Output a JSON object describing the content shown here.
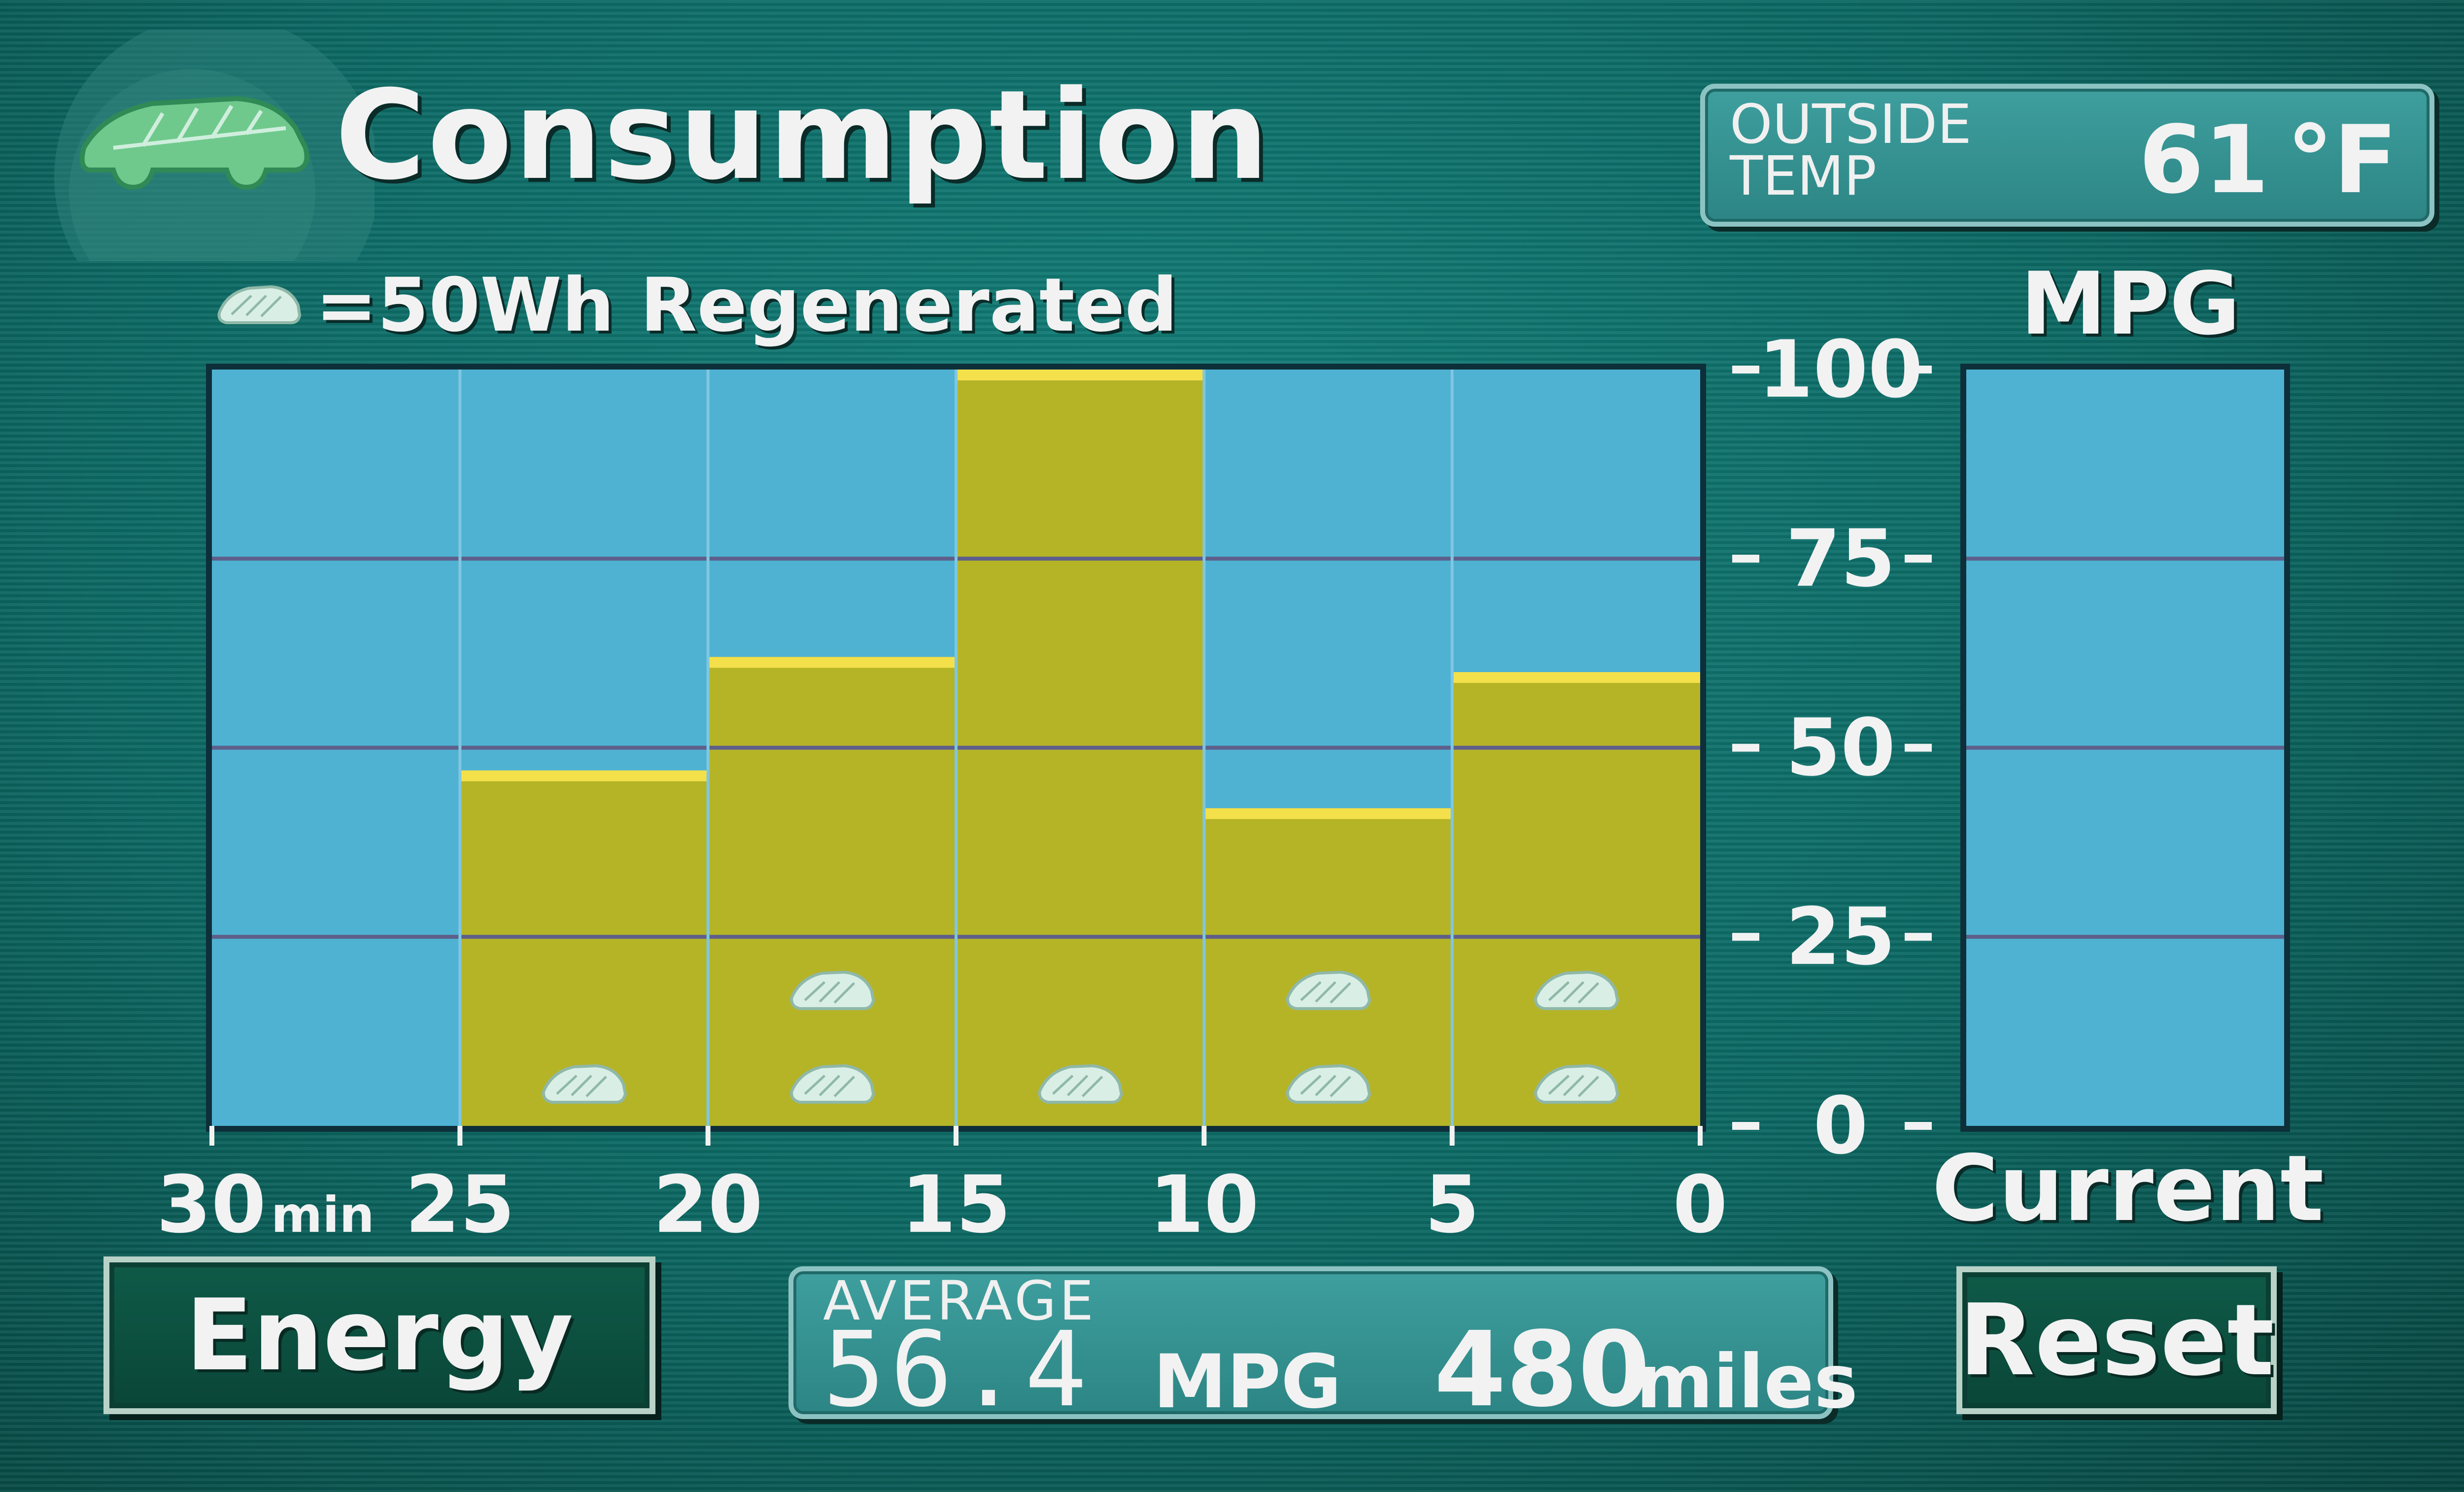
{
  "header": {
    "title": "Consumption",
    "logo_icon": "leaf-car-icon",
    "legend_icon": "regen-car-icon",
    "legend_text": "=50Wh Regenerated"
  },
  "outside_temp": {
    "label": "OUTSIDE\nTEMP",
    "value": "61",
    "unit": "°F"
  },
  "mpg_axis_label": "MPG",
  "current_label": "Current",
  "buttons": {
    "energy": "Energy",
    "reset": "Reset"
  },
  "average": {
    "label": "AVERAGE",
    "mpg_value": "56.4",
    "mpg_unit": "MPG",
    "distance_value": "480",
    "distance_unit": "miles"
  },
  "colors": {
    "bar_fill": "#b5b427",
    "bar_top": "#f3e04a",
    "plot_bg": "#4fb2d3",
    "grid_line": "#5e5f8a"
  },
  "chart_data": {
    "type": "bar",
    "categories": [
      "30-25",
      "25-20",
      "20-15",
      "15-10",
      "10-5",
      "5-0"
    ],
    "values": [
      0,
      47,
      62,
      100,
      42,
      60
    ],
    "regen_icons": [
      0,
      1,
      2,
      1,
      2,
      2
    ],
    "ylim": [
      0,
      100
    ],
    "y_ticks": [
      "100",
      "75",
      "50",
      "25",
      "0"
    ],
    "x_ticks": [
      {
        "label": "30",
        "sub": "min"
      },
      {
        "label": "25",
        "sub": ""
      },
      {
        "label": "20",
        "sub": ""
      },
      {
        "label": "15",
        "sub": ""
      },
      {
        "label": "10",
        "sub": ""
      },
      {
        "label": "5",
        "sub": ""
      },
      {
        "label": "0",
        "sub": ""
      }
    ],
    "current_mpg": 0,
    "grid": true
  }
}
